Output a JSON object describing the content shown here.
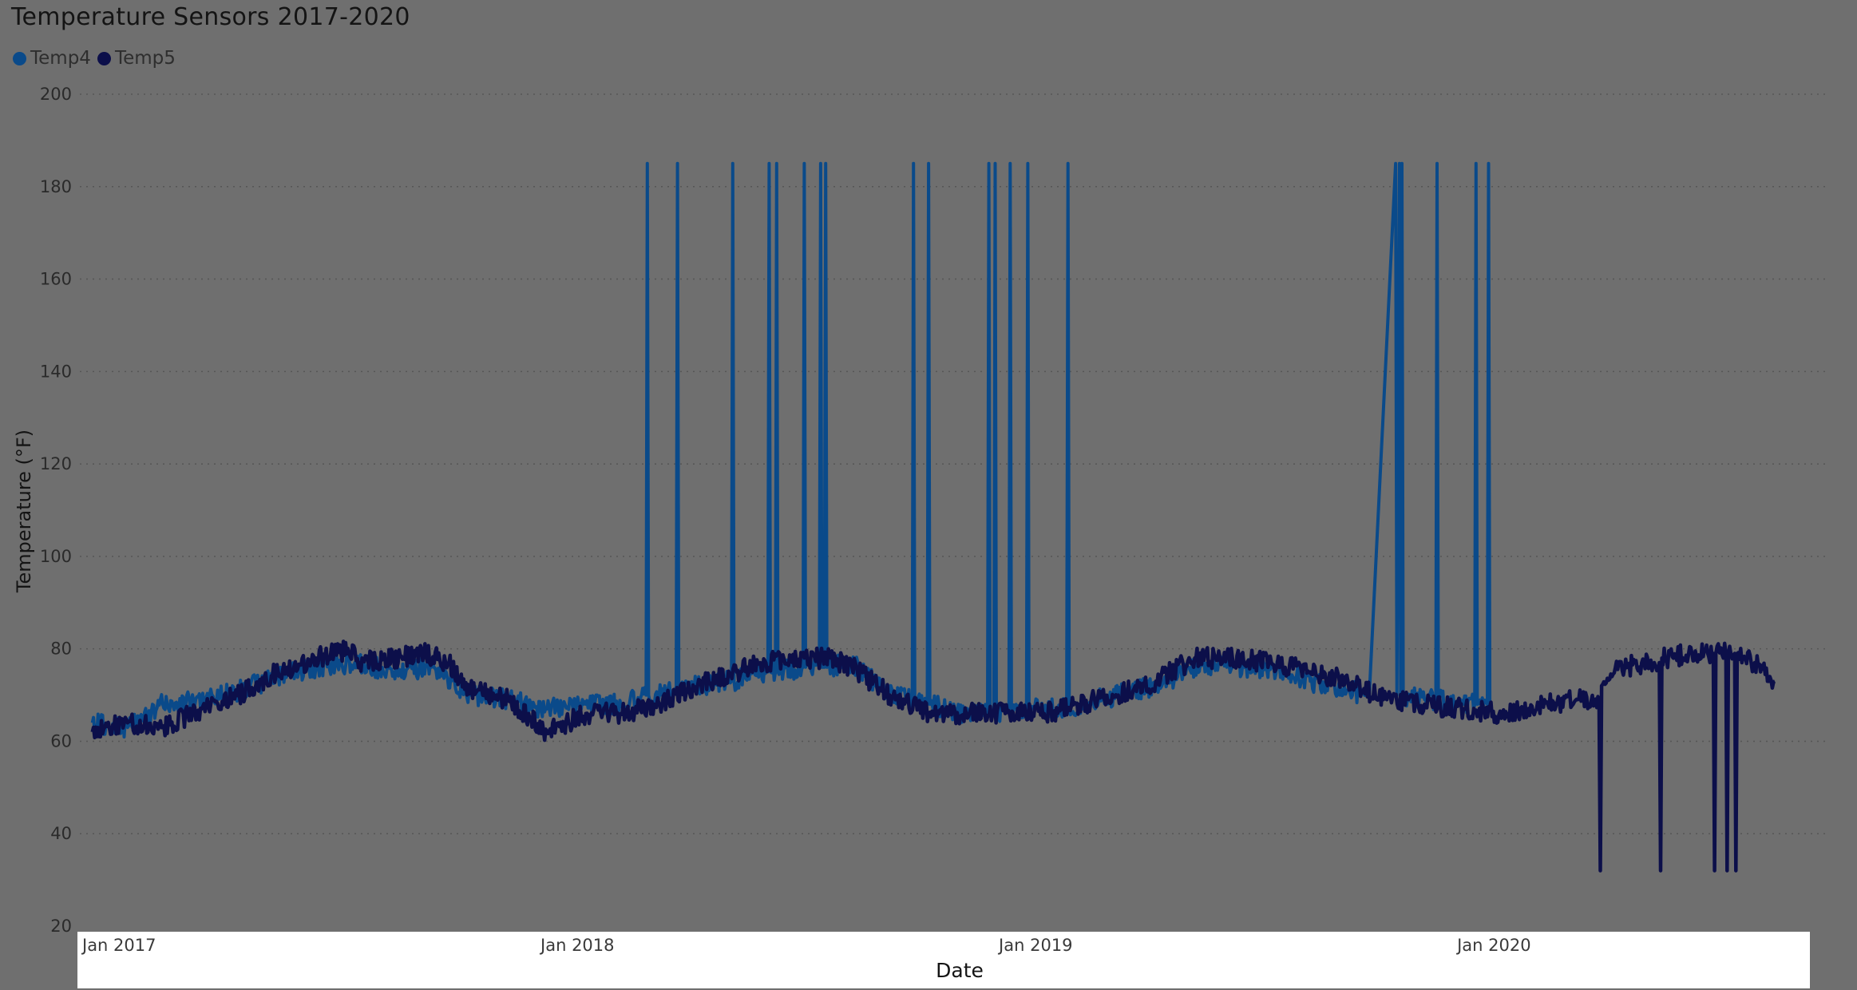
{
  "chart_data": {
    "type": "line",
    "title": "Temperature Sensors 2017-2020",
    "xlabel": "Date",
    "ylabel": "Temperature (°F)",
    "ylim": [
      20,
      200
    ],
    "xlim": [
      "2016-12-25",
      "2020-10-15"
    ],
    "y_ticks": [
      20,
      40,
      60,
      80,
      100,
      120,
      140,
      160,
      180,
      200
    ],
    "x_ticks": [
      {
        "date": "2017-01-01",
        "label": "Jan 2017"
      },
      {
        "date": "2018-01-01",
        "label": "Jan 2018"
      },
      {
        "date": "2019-01-01",
        "label": "Jan 2019"
      },
      {
        "date": "2020-01-01",
        "label": "Jan 2020"
      }
    ],
    "grid": "horizontal-dotted",
    "legend_position": "top-left",
    "series": [
      {
        "name": "Temp4",
        "color": "#0a4a8a",
        "points": [
          [
            "2017-01-04",
            64
          ],
          [
            "2017-02-01",
            63
          ],
          [
            "2017-03-01",
            68
          ],
          [
            "2017-04-01",
            69
          ],
          [
            "2017-05-01",
            71
          ],
          [
            "2017-06-01",
            74
          ],
          [
            "2017-07-01",
            76
          ],
          [
            "2017-08-01",
            77
          ],
          [
            "2017-09-01",
            75
          ],
          [
            "2017-10-01",
            76
          ],
          [
            "2017-11-01",
            70
          ],
          [
            "2017-12-01",
            69
          ],
          [
            "2018-01-01",
            67
          ],
          [
            "2018-02-01",
            68
          ],
          [
            "2018-03-01",
            68
          ],
          [
            "2018-03-21",
            70
          ],
          [
            "2018-03-22",
            185
          ],
          [
            "2018-03-23",
            70
          ],
          [
            "2018-04-14",
            71
          ],
          [
            "2018-04-15",
            185
          ],
          [
            "2018-04-16",
            71
          ],
          [
            "2018-05-01",
            72
          ],
          [
            "2018-05-28",
            73
          ],
          [
            "2018-05-29",
            185
          ],
          [
            "2018-05-30",
            73
          ],
          [
            "2018-06-15",
            75
          ],
          [
            "2018-06-26",
            75
          ],
          [
            "2018-06-27",
            185
          ],
          [
            "2018-06-28",
            75
          ],
          [
            "2018-07-02",
            75
          ],
          [
            "2018-07-03",
            185
          ],
          [
            "2018-07-04",
            75
          ],
          [
            "2018-07-24",
            76
          ],
          [
            "2018-07-25",
            185
          ],
          [
            "2018-07-26",
            76
          ],
          [
            "2018-08-06",
            76
          ],
          [
            "2018-08-07",
            185
          ],
          [
            "2018-08-08",
            76
          ],
          [
            "2018-08-10",
            76
          ],
          [
            "2018-08-11",
            185
          ],
          [
            "2018-08-12",
            76
          ],
          [
            "2018-09-01",
            77
          ],
          [
            "2018-10-01",
            70
          ],
          [
            "2018-10-19",
            69
          ],
          [
            "2018-10-20",
            185
          ],
          [
            "2018-10-21",
            69
          ],
          [
            "2018-10-31",
            68
          ],
          [
            "2018-11-01",
            185
          ],
          [
            "2018-11-02",
            68
          ],
          [
            "2018-12-01",
            66
          ],
          [
            "2018-12-18",
            66
          ],
          [
            "2018-12-19",
            185
          ],
          [
            "2018-12-20",
            66
          ],
          [
            "2018-12-23",
            66
          ],
          [
            "2018-12-24",
            185
          ],
          [
            "2018-12-25",
            66
          ],
          [
            "2019-01-04",
            67
          ],
          [
            "2019-01-05",
            185
          ],
          [
            "2019-01-06",
            67
          ],
          [
            "2019-01-18",
            67
          ],
          [
            "2019-01-19",
            185
          ],
          [
            "2019-01-20",
            67
          ],
          [
            "2019-02-01",
            67
          ],
          [
            "2019-02-19",
            67
          ],
          [
            "2019-02-20",
            185
          ],
          [
            "2019-02-21",
            67
          ],
          [
            "2019-03-01",
            68
          ],
          [
            "2019-04-01",
            70
          ],
          [
            "2019-05-01",
            72
          ],
          [
            "2019-06-01",
            76
          ],
          [
            "2019-07-01",
            76
          ],
          [
            "2019-08-01",
            76
          ],
          [
            "2019-09-01",
            73
          ],
          [
            "2019-10-01",
            71
          ],
          [
            "2019-10-18",
            70
          ],
          [
            "2019-11-08",
            185
          ],
          [
            "2019-11-09",
            70
          ],
          [
            "2019-11-11",
            185
          ],
          [
            "2019-11-12",
            70
          ],
          [
            "2019-11-13",
            185
          ],
          [
            "2019-11-14",
            70
          ],
          [
            "2019-12-01",
            69
          ],
          [
            "2019-12-10",
            69
          ],
          [
            "2019-12-11",
            185
          ],
          [
            "2019-12-12",
            69
          ],
          [
            "2020-01-01",
            68
          ],
          [
            "2020-01-10",
            68
          ],
          [
            "2020-01-11",
            185
          ],
          [
            "2020-01-12",
            68
          ],
          [
            "2020-01-20",
            68
          ],
          [
            "2020-01-21",
            185
          ],
          [
            "2020-01-22",
            68
          ]
        ]
      },
      {
        "name": "Temp5",
        "color": "#0c0f4a",
        "points": [
          [
            "2017-01-04",
            62
          ],
          [
            "2017-02-01",
            64
          ],
          [
            "2017-03-01",
            63
          ],
          [
            "2017-04-01",
            67
          ],
          [
            "2017-05-01",
            70
          ],
          [
            "2017-06-01",
            75
          ],
          [
            "2017-07-01",
            78
          ],
          [
            "2017-08-01",
            80
          ],
          [
            "2017-08-05",
            77
          ],
          [
            "2017-09-25",
            79
          ],
          [
            "2017-10-15",
            77
          ],
          [
            "2017-11-01",
            71
          ],
          [
            "2017-12-01",
            69
          ],
          [
            "2018-01-01",
            62
          ],
          [
            "2018-02-01",
            66
          ],
          [
            "2018-03-01",
            66
          ],
          [
            "2018-04-01",
            68
          ],
          [
            "2018-05-01",
            72
          ],
          [
            "2018-06-01",
            75
          ],
          [
            "2018-06-20",
            77
          ],
          [
            "2018-07-25",
            78
          ],
          [
            "2018-08-15",
            78
          ],
          [
            "2018-09-01",
            76
          ],
          [
            "2018-10-01",
            70
          ],
          [
            "2018-11-01",
            66
          ],
          [
            "2018-12-01",
            66
          ],
          [
            "2019-01-01",
            66
          ],
          [
            "2019-02-01",
            66
          ],
          [
            "2019-03-01",
            68
          ],
          [
            "2019-04-01",
            70
          ],
          [
            "2019-05-01",
            73
          ],
          [
            "2019-06-01",
            78
          ],
          [
            "2019-07-01",
            78
          ],
          [
            "2019-08-01",
            77
          ],
          [
            "2019-09-01",
            75
          ],
          [
            "2019-10-01",
            73
          ],
          [
            "2019-11-01",
            69
          ],
          [
            "2019-12-01",
            68
          ],
          [
            "2020-01-01",
            67
          ],
          [
            "2020-02-01",
            66
          ],
          [
            "2020-03-01",
            68
          ],
          [
            "2020-04-01",
            69
          ],
          [
            "2020-04-18",
            69
          ],
          [
            "2020-04-19",
            32
          ],
          [
            "2020-04-20",
            72
          ],
          [
            "2020-05-01",
            76
          ],
          [
            "2020-06-01",
            77
          ],
          [
            "2020-06-05",
            77
          ],
          [
            "2020-06-06",
            32
          ],
          [
            "2020-06-07",
            78
          ],
          [
            "2020-07-01",
            79
          ],
          [
            "2020-07-18",
            79
          ],
          [
            "2020-07-19",
            32
          ],
          [
            "2020-07-20",
            79
          ],
          [
            "2020-07-28",
            79
          ],
          [
            "2020-07-29",
            32
          ],
          [
            "2020-07-30",
            79
          ],
          [
            "2020-08-04",
            79
          ],
          [
            "2020-08-05",
            32
          ],
          [
            "2020-08-06",
            79
          ],
          [
            "2020-08-20",
            77
          ],
          [
            "2020-09-01",
            74
          ],
          [
            "2020-09-05",
            73
          ]
        ]
      }
    ]
  }
}
